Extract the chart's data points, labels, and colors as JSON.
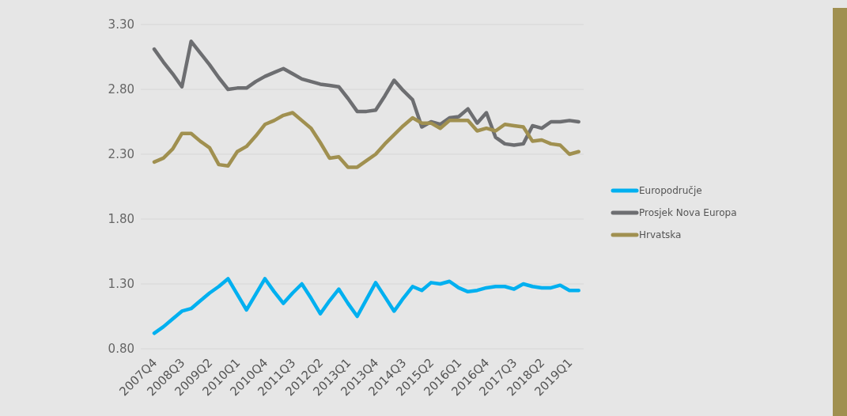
{
  "chart_data": {
    "type": "line",
    "categories": [
      "2007Q4",
      null,
      null,
      "2008Q3",
      null,
      null,
      "2009Q2",
      null,
      null,
      "2010Q1",
      null,
      null,
      "2010Q4",
      null,
      null,
      "2011Q3",
      null,
      null,
      "2012Q2",
      null,
      null,
      "2013Q1",
      null,
      null,
      "2013Q4",
      null,
      null,
      "2014Q3",
      null,
      null,
      "2015Q2",
      null,
      null,
      "2016Q1",
      null,
      null,
      "2016Q4",
      null,
      null,
      "2017Q3",
      null,
      null,
      "2018Q2",
      null,
      null,
      "2019Q1",
      null
    ],
    "series": [
      {
        "name": "Europodručje",
        "color": "#00b0f0",
        "values": [
          0.92,
          0.97,
          1.03,
          1.09,
          1.11,
          1.17,
          1.23,
          1.28,
          1.34,
          1.22,
          1.1,
          1.22,
          1.34,
          1.24,
          1.15,
          1.23,
          1.3,
          1.19,
          1.07,
          1.17,
          1.26,
          1.15,
          1.05,
          1.18,
          1.31,
          1.2,
          1.09,
          1.19,
          1.28,
          1.25,
          1.31,
          1.3,
          1.32,
          1.27,
          1.24,
          1.25,
          1.27,
          1.28,
          1.28,
          1.26,
          1.3,
          1.28,
          1.27,
          1.27,
          1.29,
          1.25,
          1.25
        ]
      },
      {
        "name": "Prosjek Nova Europa",
        "color": "#6d6e71",
        "values": [
          3.11,
          3.01,
          2.92,
          2.82,
          3.17,
          3.08,
          2.99,
          2.89,
          2.8,
          2.81,
          2.81,
          2.86,
          2.9,
          2.93,
          2.96,
          2.92,
          2.88,
          2.86,
          2.84,
          2.83,
          2.82,
          2.73,
          2.63,
          2.63,
          2.64,
          2.75,
          2.87,
          2.79,
          2.72,
          2.51,
          2.55,
          2.53,
          2.58,
          2.59,
          2.65,
          2.54,
          2.62,
          2.43,
          2.38,
          2.37,
          2.38,
          2.52,
          2.5,
          2.55,
          2.55,
          2.56,
          2.55
        ]
      },
      {
        "name": "Hrvatska",
        "color": "#a09050",
        "values": [
          2.24,
          2.27,
          2.34,
          2.46,
          2.46,
          2.4,
          2.35,
          2.22,
          2.21,
          2.32,
          2.36,
          2.44,
          2.53,
          2.56,
          2.6,
          2.62,
          2.56,
          2.5,
          2.39,
          2.27,
          2.28,
          2.2,
          2.2,
          2.25,
          2.3,
          2.38,
          2.45,
          2.52,
          2.58,
          2.54,
          2.54,
          2.5,
          2.56,
          2.56,
          2.56,
          2.48,
          2.5,
          2.48,
          2.53,
          2.52,
          2.51,
          2.4,
          2.41,
          2.38,
          2.37,
          2.3,
          2.32
        ]
      }
    ],
    "ylim": [
      0.8,
      3.3
    ],
    "yticks": [
      {
        "value": 0.8,
        "label": "0.80"
      },
      {
        "value": 1.3,
        "label": "1.30"
      },
      {
        "value": 1.8,
        "label": "1.80"
      },
      {
        "value": 2.3,
        "label": "2.30"
      },
      {
        "value": 2.8,
        "label": "2.80"
      },
      {
        "value": 3.3,
        "label": "3.30"
      }
    ],
    "grid": "y",
    "legend": "right",
    "marker": "none",
    "line_style": "solid"
  }
}
